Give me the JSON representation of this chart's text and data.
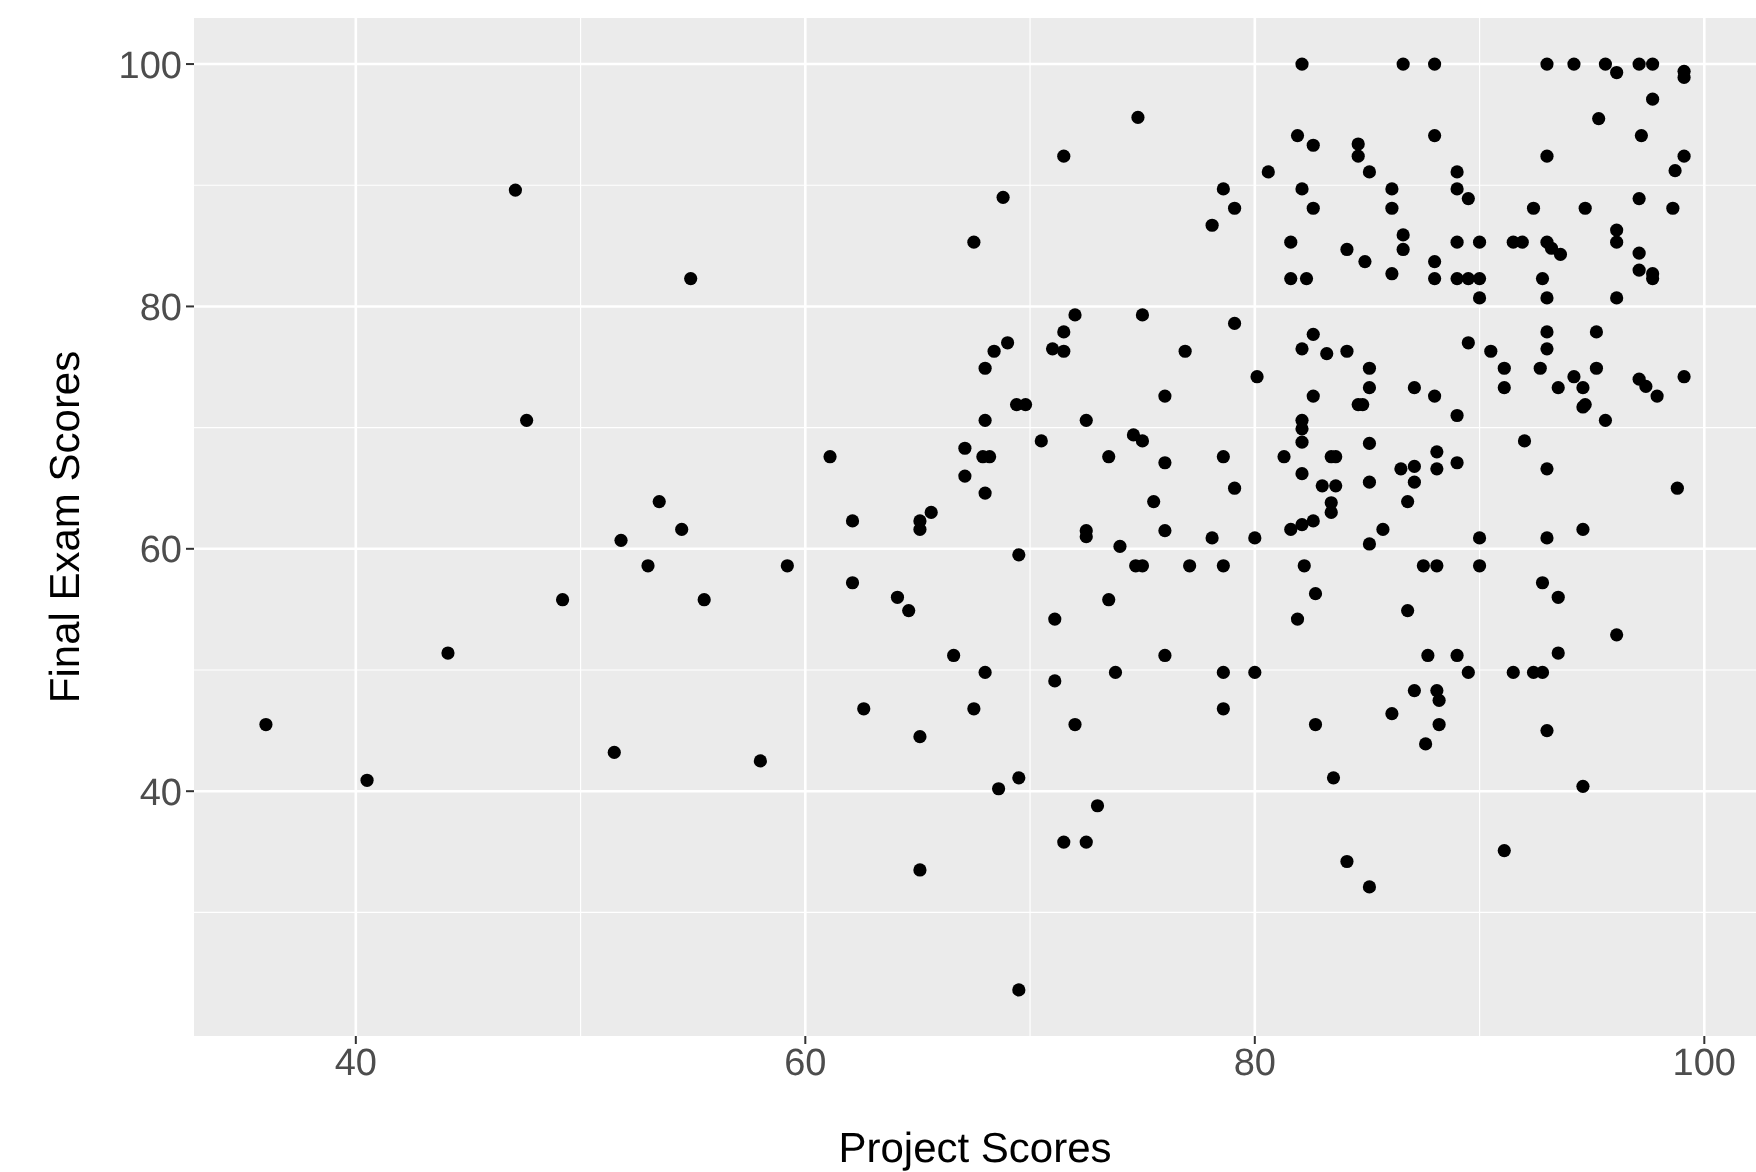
{
  "chart_data": {
    "type": "scatter",
    "xlabel": "Project Scores",
    "ylabel": "Final Exam Scores",
    "color": "#000000",
    "marker": "circle",
    "grid": true,
    "xlim": [
      32.8,
      102.3
    ],
    "ylim": [
      19.8,
      103.8
    ],
    "xticks": [
      40,
      60,
      80,
      100
    ],
    "yticks": [
      40,
      60,
      80,
      100
    ],
    "x": [
      47.1,
      54.9,
      47.6,
      53.5,
      54.5,
      51.8,
      53.0,
      49.2,
      55.5,
      44.1,
      36.0,
      40.5,
      51.5,
      59.2,
      62.1,
      64.1,
      64.6,
      66.6,
      68.0,
      62.6,
      67.5,
      65.1,
      58.0,
      68.6,
      69.5,
      65.1,
      69.5,
      69.5,
      71.1,
      71.1,
      72.0,
      73.0,
      71.5,
      72.5,
      73.5,
      73.8,
      76.0,
      78.6,
      78.6,
      80.0,
      74.0,
      74.7,
      75.0,
      77.1,
      78.6,
      78.1,
      72.5,
      72.5,
      76.0,
      80.0,
      74.8,
      71.5,
      68.8,
      67.5,
      78.6,
      79.1,
      78.1,
      72.0,
      75.0,
      71.5,
      69.0,
      71.0,
      71.5,
      68.4,
      76.9,
      79.1,
      68.0,
      80.1,
      76.0,
      69.4,
      69.8,
      68.0,
      72.5,
      70.5,
      74.6,
      75.0,
      61.1,
      67.1,
      67.9,
      68.2,
      73.5,
      76.0,
      78.6,
      67.1,
      68.0,
      79.1,
      75.5,
      62.1,
      65.1,
      65.1,
      65.6,
      82.1,
      86.6,
      88.0,
      93.0,
      94.2,
      95.6,
      97.1,
      97.7,
      96.1,
      99.1,
      99.1,
      97.7,
      95.3,
      97.2,
      81.9,
      82.6,
      84.6,
      84.6,
      88.0,
      93.0,
      99.1,
      98.7,
      80.6,
      85.1,
      89.0,
      82.1,
      86.1,
      89.0,
      89.5,
      82.6,
      86.1,
      92.4,
      94.7,
      97.1,
      98.6,
      81.6,
      84.1,
      84.9,
      86.6,
      86.6,
      89.0,
      90.0,
      91.5,
      91.9,
      93.0,
      93.2,
      93.6,
      96.1,
      96.1,
      97.1,
      97.1,
      97.7,
      97.7,
      81.6,
      82.3,
      86.1,
      88.0,
      88.0,
      89.0,
      89.5,
      90.0,
      92.8,
      90.0,
      93.0,
      96.1,
      82.6,
      82.1,
      83.2,
      84.1,
      89.5,
      90.5,
      93.0,
      93.0,
      95.2,
      85.1,
      85.1,
      82.6,
      84.6,
      84.8,
      87.1,
      88.0,
      89.0,
      91.1,
      91.1,
      92.7,
      93.5,
      94.2,
      94.6,
      94.6,
      94.7,
      95.2,
      95.6,
      97.1,
      97.4,
      97.9,
      99.1,
      82.1,
      82.1,
      82.1,
      81.3,
      82.1,
      83.4,
      83.6,
      83.0,
      83.6,
      83.4,
      83.4,
      85.1,
      85.1,
      86.5,
      87.1,
      87.1,
      86.8,
      88.1,
      88.1,
      89.0,
      92.0,
      93.0,
      98.8,
      81.6,
      82.1,
      82.6,
      85.7,
      85.1,
      90.0,
      93.0,
      94.6,
      82.2,
      82.7,
      81.9,
      87.5,
      88.1,
      90.0,
      92.8,
      93.5,
      86.8,
      96.1,
      87.7,
      89.0,
      93.5,
      89.5,
      91.5,
      92.4,
      92.8,
      87.1,
      88.1,
      88.2,
      86.1,
      88.2,
      82.7,
      87.6,
      93.0,
      83.5,
      94.6,
      84.1,
      85.1,
      91.1
    ],
    "values": [
      89.6,
      82.3,
      70.6,
      63.9,
      61.6,
      60.7,
      58.6,
      55.8,
      55.8,
      51.4,
      45.5,
      40.9,
      43.2,
      58.6,
      57.2,
      56.0,
      54.9,
      51.2,
      49.8,
      46.8,
      46.8,
      44.5,
      42.5,
      40.2,
      41.1,
      33.5,
      23.6,
      59.5,
      54.2,
      49.1,
      45.5,
      38.8,
      35.8,
      35.8,
      55.8,
      49.8,
      51.2,
      49.8,
      46.8,
      49.8,
      60.2,
      58.6,
      58.6,
      58.6,
      58.6,
      60.9,
      61.5,
      61.0,
      61.5,
      60.9,
      95.6,
      92.4,
      89.0,
      85.3,
      89.7,
      88.1,
      86.7,
      79.3,
      79.3,
      77.9,
      77.0,
      76.5,
      76.3,
      76.3,
      76.3,
      78.6,
      74.9,
      74.2,
      72.6,
      71.9,
      71.9,
      70.6,
      70.6,
      68.9,
      69.4,
      68.9,
      67.6,
      68.3,
      67.6,
      67.6,
      67.6,
      67.1,
      67.6,
      66.0,
      64.6,
      65.0,
      63.9,
      62.3,
      62.3,
      61.6,
      63.0,
      100,
      100,
      100,
      100,
      100,
      100,
      100,
      100,
      99.3,
      99.4,
      98.9,
      97.1,
      95.5,
      94.1,
      94.1,
      93.3,
      93.4,
      92.4,
      94.1,
      92.4,
      92.4,
      91.2,
      91.1,
      91.1,
      91.1,
      89.7,
      89.7,
      89.7,
      88.9,
      88.1,
      88.1,
      88.1,
      88.1,
      88.9,
      88.1,
      85.3,
      84.7,
      83.7,
      85.9,
      84.7,
      85.3,
      85.3,
      85.3,
      85.3,
      85.3,
      84.8,
      84.3,
      86.3,
      85.3,
      84.4,
      83.0,
      82.7,
      82.3,
      82.3,
      82.3,
      82.7,
      83.7,
      82.3,
      82.3,
      82.3,
      82.3,
      82.3,
      80.7,
      80.7,
      80.7,
      77.7,
      76.5,
      76.1,
      76.3,
      77.0,
      76.3,
      77.9,
      76.5,
      77.9,
      74.9,
      73.3,
      72.6,
      71.9,
      71.9,
      73.3,
      72.6,
      71.0,
      74.9,
      73.3,
      74.9,
      73.3,
      74.2,
      73.3,
      71.7,
      71.9,
      74.9,
      70.6,
      74.0,
      73.4,
      72.6,
      74.2,
      70.6,
      69.9,
      68.8,
      67.6,
      66.2,
      67.6,
      67.6,
      65.2,
      65.2,
      63.8,
      63.0,
      68.7,
      65.5,
      66.6,
      66.8,
      65.5,
      63.9,
      68.0,
      66.6,
      67.1,
      68.9,
      66.6,
      65.0,
      61.6,
      62.0,
      62.3,
      61.6,
      60.4,
      60.9,
      60.9,
      61.6,
      58.6,
      56.3,
      54.2,
      58.6,
      58.6,
      58.6,
      57.2,
      56.0,
      54.9,
      52.9,
      51.2,
      51.2,
      51.4,
      49.8,
      49.8,
      49.8,
      49.8,
      48.3,
      48.3,
      47.5,
      46.4,
      45.5,
      45.5,
      43.9,
      45.0,
      41.1,
      40.4,
      34.2,
      32.1,
      35.1
    ]
  }
}
